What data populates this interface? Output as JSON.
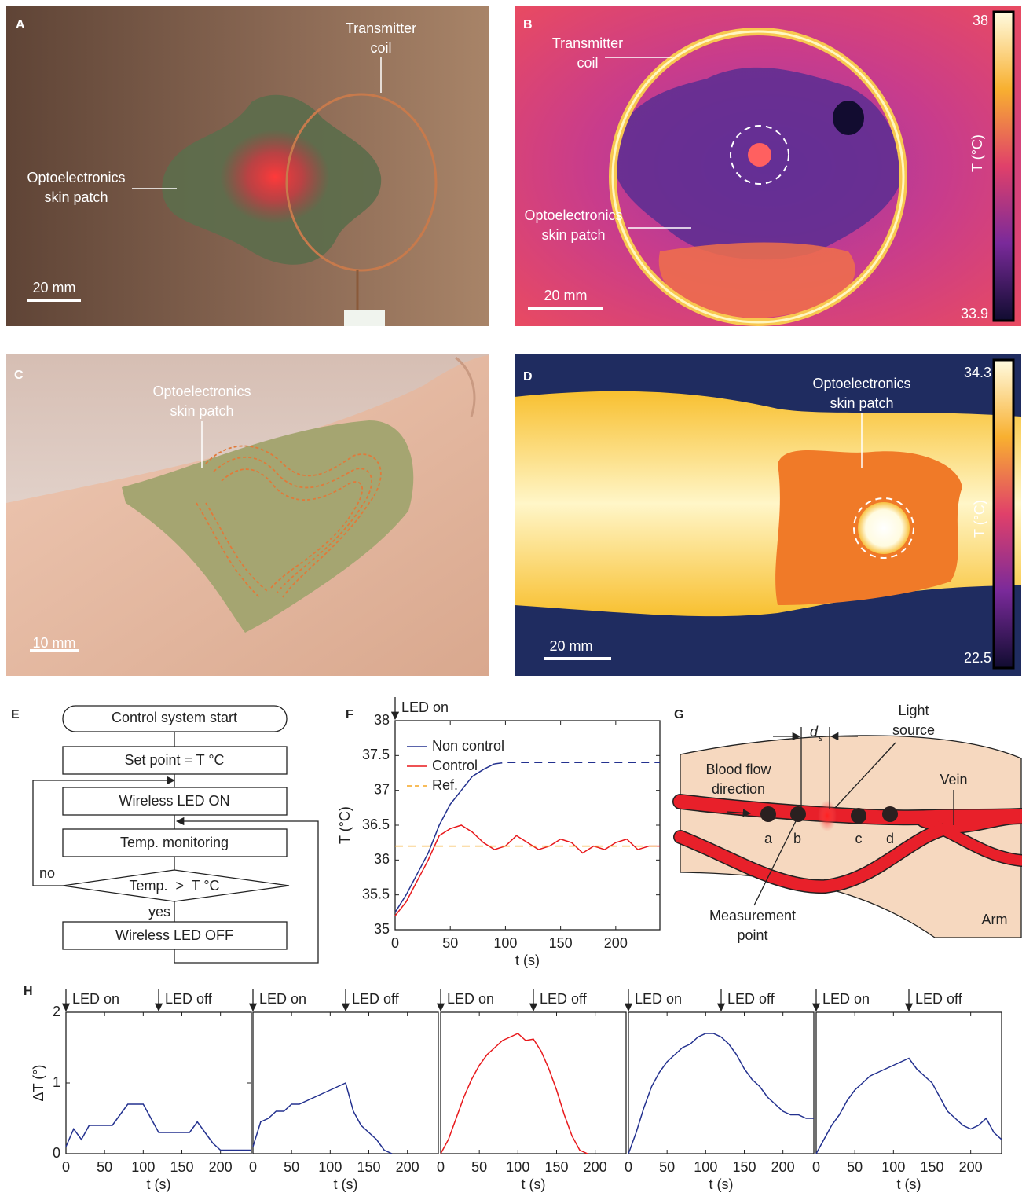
{
  "photo_a": {
    "letter": "A",
    "coil_label": [
      "Transmitter",
      "coil"
    ],
    "patch_label": [
      "Optoelectronics",
      "skin patch"
    ],
    "scale_bar": "20 mm"
  },
  "thermal_b": {
    "letter": "B",
    "coil_label": [
      "Transmitter",
      "coil"
    ],
    "patch_label": [
      "Optoelectronics",
      "skin patch"
    ],
    "scale_bar": "20 mm",
    "colorbar": {
      "label": "T (°C)",
      "max": 38,
      "min": 33.9
    }
  },
  "photo_c": {
    "letter": "C",
    "patch_label": [
      "Optoelectronics",
      "skin patch"
    ],
    "scale_bar": "10 mm"
  },
  "thermal_d": {
    "letter": "D",
    "patch_label": [
      "Optoelectronics",
      "skin patch"
    ],
    "scale_bar": "20 mm",
    "colorbar": {
      "label": "T (°C)",
      "max": 34.3,
      "min": 22.5
    }
  },
  "flowchart_e": {
    "letter": "E",
    "nodes": [
      "Control system start",
      "Set point = T °C",
      "Wireless LED ON",
      "Temp. monitoring",
      "Temp.  >  T °C",
      "Wireless LED OFF"
    ],
    "edge_labels": [
      "no",
      "yes"
    ]
  },
  "diagram_g": {
    "letter": "G",
    "ds_label": "d",
    "ds_sub": "s",
    "light_label": [
      "Light",
      "source"
    ],
    "flow_label": [
      "Blood flow",
      "direction"
    ],
    "vein_label": "Vein",
    "points": [
      "a",
      "b",
      "c",
      "d"
    ],
    "measure_label": [
      "Measurement",
      "point"
    ],
    "arm_label": "Arm"
  },
  "chart_data": [
    {
      "type": "line",
      "panel": "F",
      "xlabel": "t (s)",
      "ylabel": "T (°C)",
      "x": [
        0,
        10,
        20,
        30,
        40,
        50,
        60,
        70,
        80,
        90,
        100,
        110,
        120,
        130,
        140,
        150,
        160,
        170,
        180,
        190,
        200,
        210,
        220,
        230,
        240
      ],
      "xlim": [
        0,
        240
      ],
      "ylim": [
        35,
        38
      ],
      "xticks": [
        0,
        50,
        100,
        150,
        200
      ],
      "yticks": [
        35,
        35.5,
        36,
        36.5,
        37,
        37.5,
        38
      ],
      "annotations": [
        {
          "label": "LED on",
          "x": 0
        }
      ],
      "legend": "upper left",
      "series": [
        {
          "name": "Non control",
          "color": "#23318f",
          "dashed_from_x": 100,
          "values": [
            35.25,
            35.5,
            35.8,
            36.1,
            36.5,
            36.8,
            37.0,
            37.2,
            37.3,
            37.38,
            37.4,
            37.4,
            37.4,
            37.4,
            37.4,
            37.4,
            37.4,
            37.4,
            37.4,
            37.4,
            37.4,
            37.4,
            37.4,
            37.4,
            37.4
          ]
        },
        {
          "name": "Control",
          "color": "#e8191c",
          "values": [
            35.2,
            35.4,
            35.7,
            36.0,
            36.35,
            36.45,
            36.5,
            36.4,
            36.25,
            36.15,
            36.2,
            36.35,
            36.25,
            36.15,
            36.2,
            36.3,
            36.25,
            36.1,
            36.2,
            36.15,
            36.25,
            36.3,
            36.15,
            36.2,
            36.2
          ]
        },
        {
          "name": "Ref.",
          "color": "#f5a623",
          "dashed": true,
          "values": [
            36.2,
            36.2,
            36.2,
            36.2,
            36.2,
            36.2,
            36.2,
            36.2,
            36.2,
            36.2,
            36.2,
            36.2,
            36.2,
            36.2,
            36.2,
            36.2,
            36.2,
            36.2,
            36.2,
            36.2,
            36.2,
            36.2,
            36.2,
            36.2,
            36.2
          ]
        }
      ]
    },
    {
      "type": "line",
      "panel": "H",
      "xlabel": "t (s)",
      "ylabel": "ΔT (°)",
      "x": [
        0,
        10,
        20,
        30,
        40,
        50,
        60,
        70,
        80,
        90,
        100,
        110,
        120,
        130,
        140,
        150,
        160,
        170,
        180,
        190,
        200,
        210,
        220,
        230,
        240
      ],
      "xlim": [
        0,
        240
      ],
      "ylim": [
        0,
        2
      ],
      "xticks": [
        0,
        50,
        100,
        150,
        200
      ],
      "yticks": [
        0,
        1,
        2
      ],
      "annotations": [
        {
          "label": "LED on",
          "x": 0
        },
        {
          "label": "LED off",
          "x": 120
        }
      ],
      "series": [
        {
          "color": "#23318f",
          "values": [
            0.1,
            0.35,
            0.2,
            0.4,
            0.4,
            0.4,
            0.4,
            0.55,
            0.7,
            0.7,
            0.7,
            0.5,
            0.3,
            0.3,
            0.3,
            0.3,
            0.3,
            0.45,
            0.3,
            0.15,
            0.05,
            0.05,
            0.05,
            0.05,
            0.05
          ]
        }
      ]
    },
    {
      "type": "line",
      "xlabel": "t (s)",
      "x": [
        0,
        10,
        20,
        30,
        40,
        50,
        60,
        70,
        80,
        90,
        100,
        110,
        120,
        130,
        140,
        150,
        160,
        170,
        180,
        190,
        200,
        210,
        220,
        230,
        240
      ],
      "xlim": [
        0,
        240
      ],
      "ylim": [
        0,
        2
      ],
      "xticks": [
        0,
        50,
        100,
        150,
        200
      ],
      "annotations": [
        {
          "label": "LED on",
          "x": 0
        },
        {
          "label": "LED off",
          "x": 120
        }
      ],
      "series": [
        {
          "color": "#23318f",
          "values": [
            0.1,
            0.45,
            0.5,
            0.6,
            0.6,
            0.7,
            0.7,
            0.75,
            0.8,
            0.85,
            0.9,
            0.95,
            1.0,
            0.6,
            0.4,
            0.3,
            0.2,
            0.05,
            0.0,
            null,
            null,
            null,
            null,
            null,
            null
          ]
        }
      ]
    },
    {
      "type": "line",
      "xlabel": "t (s)",
      "x": [
        0,
        10,
        20,
        30,
        40,
        50,
        60,
        70,
        80,
        90,
        100,
        110,
        120,
        130,
        140,
        150,
        160,
        170,
        180,
        190,
        200,
        210,
        220,
        230,
        240
      ],
      "xlim": [
        0,
        240
      ],
      "ylim": [
        0,
        2
      ],
      "xticks": [
        0,
        50,
        100,
        150,
        200
      ],
      "annotations": [
        {
          "label": "LED on",
          "x": 0
        },
        {
          "label": "LED off",
          "x": 120
        }
      ],
      "series": [
        {
          "color": "#e8191c",
          "values": [
            0.0,
            0.2,
            0.5,
            0.8,
            1.05,
            1.25,
            1.4,
            1.5,
            1.6,
            1.65,
            1.7,
            1.6,
            1.62,
            1.45,
            1.2,
            0.9,
            0.55,
            0.25,
            0.05,
            0.0,
            null,
            null,
            null,
            null,
            null
          ]
        }
      ]
    },
    {
      "type": "line",
      "xlabel": "t (s)",
      "x": [
        0,
        10,
        20,
        30,
        40,
        50,
        60,
        70,
        80,
        90,
        100,
        110,
        120,
        130,
        140,
        150,
        160,
        170,
        180,
        190,
        200,
        210,
        220,
        230,
        240
      ],
      "xlim": [
        0,
        240
      ],
      "ylim": [
        0,
        2
      ],
      "xticks": [
        0,
        50,
        100,
        150,
        200
      ],
      "annotations": [
        {
          "label": "LED on",
          "x": 0
        },
        {
          "label": "LED off",
          "x": 120
        }
      ],
      "series": [
        {
          "color": "#23318f",
          "values": [
            0.0,
            0.3,
            0.65,
            0.95,
            1.15,
            1.3,
            1.4,
            1.5,
            1.55,
            1.65,
            1.7,
            1.7,
            1.65,
            1.55,
            1.4,
            1.2,
            1.05,
            0.95,
            0.8,
            0.7,
            0.6,
            0.55,
            0.55,
            0.5,
            0.5
          ]
        }
      ]
    },
    {
      "type": "line",
      "xlabel": "t (s)",
      "x": [
        0,
        10,
        20,
        30,
        40,
        50,
        60,
        70,
        80,
        90,
        100,
        110,
        120,
        130,
        140,
        150,
        160,
        170,
        180,
        190,
        200,
        210,
        220,
        230,
        240
      ],
      "xlim": [
        0,
        240
      ],
      "ylim": [
        0,
        2
      ],
      "xticks": [
        0,
        50,
        100,
        150,
        200
      ],
      "annotations": [
        {
          "label": "LED on",
          "x": 0
        },
        {
          "label": "LED off",
          "x": 120
        }
      ],
      "series": [
        {
          "color": "#23318f",
          "values": [
            0.0,
            0.2,
            0.4,
            0.55,
            0.75,
            0.9,
            1.0,
            1.1,
            1.15,
            1.2,
            1.25,
            1.3,
            1.35,
            1.2,
            1.1,
            1.0,
            0.8,
            0.6,
            0.5,
            0.4,
            0.35,
            0.4,
            0.5,
            0.3,
            0.2
          ]
        }
      ]
    }
  ]
}
